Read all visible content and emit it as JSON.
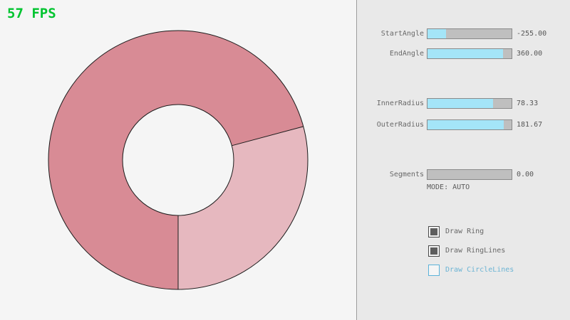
{
  "fps_counter": {
    "label": "57 FPS",
    "color": "#00c42f"
  },
  "panel": {
    "sliders": [
      {
        "label": "StartAngle",
        "value": "-255.00",
        "fill_percent": 22
      },
      {
        "label": "EndAngle",
        "value": "360.00",
        "fill_percent": 90
      },
      {
        "label": "InnerRadius",
        "value": "78.33",
        "fill_percent": 78
      },
      {
        "label": "OuterRadius",
        "value": "181.67",
        "fill_percent": 91
      },
      {
        "label": "Segments",
        "value": "0.00",
        "fill_percent": 0
      }
    ],
    "mode_text": "MODE: AUTO",
    "checkboxes": [
      {
        "label": "Draw Ring",
        "checked": true
      },
      {
        "label": "Draw RingLines",
        "checked": true
      },
      {
        "label": "Draw CircleLines",
        "checked": false
      }
    ],
    "colors": {
      "slider_fill": "#a4e5f8",
      "checkbox_focus_border": "#5bb2d9",
      "checkbox_focus_text": "#6cb4d4"
    }
  },
  "chart_data": {
    "type": "ring",
    "title": "",
    "start_angle": -255.0,
    "end_angle": 360.0,
    "inner_radius": 78.33,
    "outer_radius": 181.67,
    "segments": 0,
    "mode": "AUTO",
    "single_pass_sector_deg": [
      -15,
      90
    ],
    "colors": {
      "ring_single": "#e6b8bf",
      "ring_double": "#d88b95",
      "outline": "#1b1b1b",
      "background": "#f5f5f5"
    }
  }
}
